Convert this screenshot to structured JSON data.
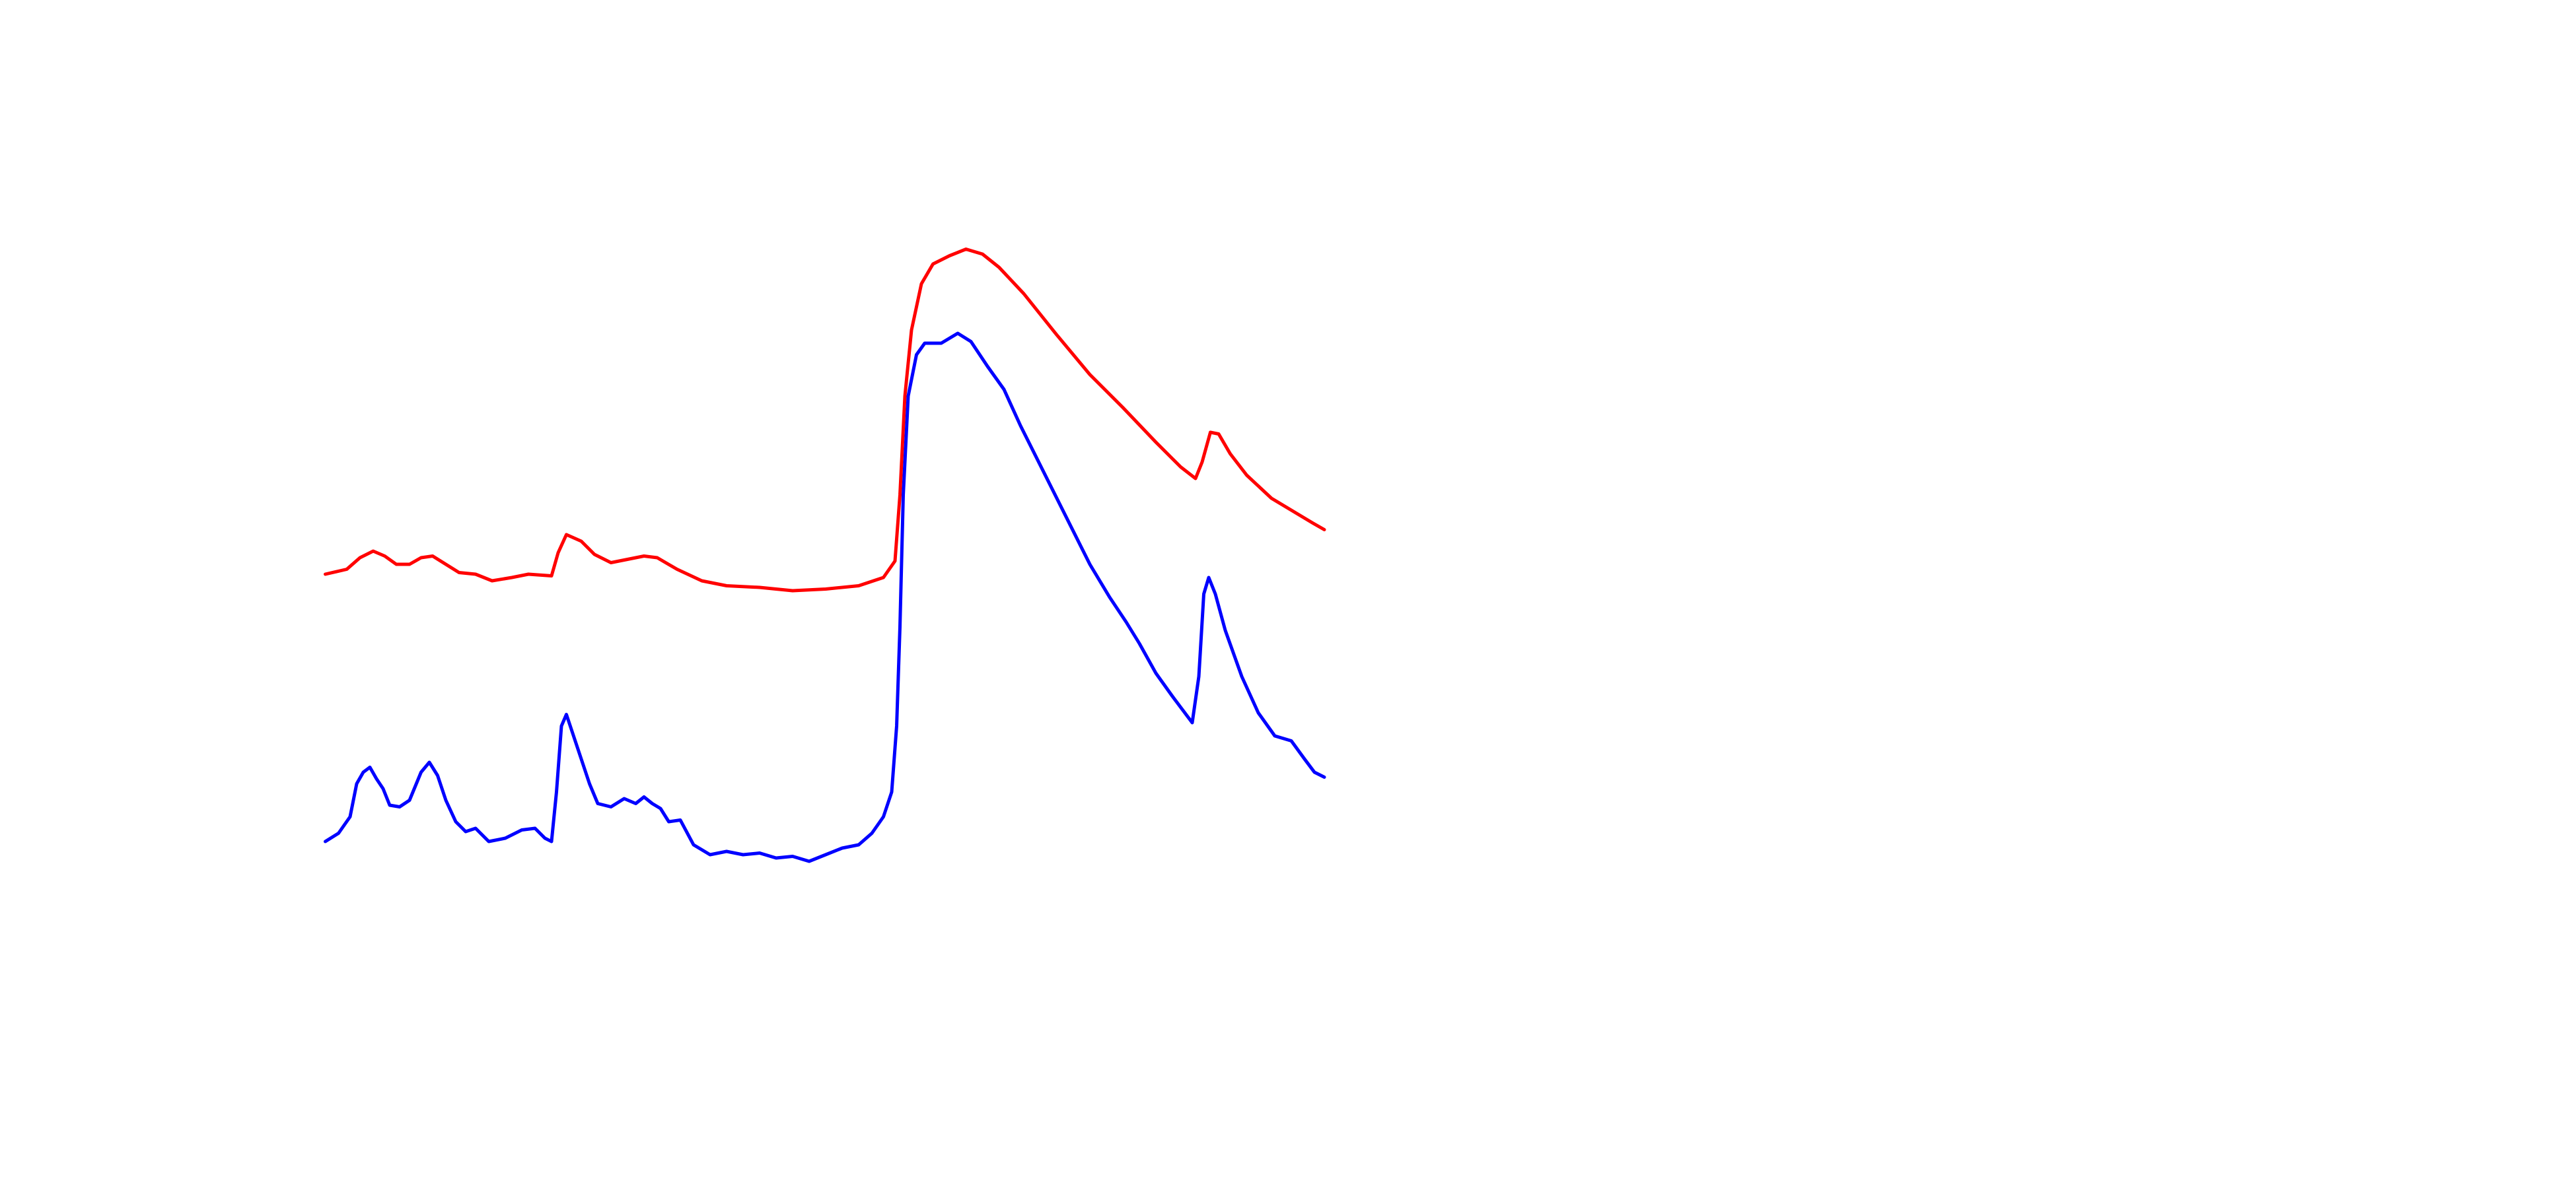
{
  "chart_data": {
    "type": "line",
    "xlim": [
      0,
      605
    ],
    "ylim": [
      0,
      390
    ],
    "series": [
      {
        "color": "#ff0000",
        "x": [
          0,
          13,
          21,
          29,
          36,
          43,
          51,
          58,
          65,
          73,
          81,
          91,
          101,
          113,
          123,
          137,
          141,
          146,
          155,
          163,
          173,
          183,
          193,
          201,
          213,
          228,
          243,
          263,
          283,
          303,
          323,
          338,
          345,
          348,
          351,
          355,
          361,
          368,
          378,
          388,
          398,
          408,
          423,
          443,
          463,
          483,
          503,
          518,
          527,
          531,
          536,
          541,
          548,
          558,
          573,
          588,
          598,
          605
        ],
        "values": [
          182,
          185,
          192,
          196,
          193,
          188,
          188,
          192,
          193,
          188,
          183,
          182,
          178,
          180,
          182,
          181,
          195,
          206,
          202,
          194,
          189,
          191,
          193,
          192,
          185,
          178,
          175,
          174,
          172,
          173,
          175,
          180,
          190,
          230,
          290,
          330,
          358,
          370,
          375,
          379,
          376,
          368,
          352,
          327,
          303,
          283,
          262,
          247,
          240,
          250,
          268,
          267,
          255,
          242,
          228,
          219,
          213,
          209
        ]
      },
      {
        "color": "#0000ff",
        "x": [
          0,
          8,
          15,
          19,
          23,
          27,
          31,
          35,
          39,
          45,
          51,
          58,
          63,
          68,
          73,
          79,
          85,
          91,
          99,
          109,
          119,
          127,
          133,
          137,
          140,
          143,
          146,
          150,
          155,
          160,
          165,
          173,
          181,
          188,
          193,
          198,
          203,
          208,
          215,
          223,
          233,
          243,
          253,
          263,
          273,
          283,
          293,
          303,
          313,
          323,
          331,
          338,
          343,
          346,
          348,
          350,
          353,
          358,
          363,
          373,
          383,
          391,
          401,
          411,
          421,
          433,
          448,
          463,
          475,
          485,
          493,
          503,
          513,
          525,
          529,
          532,
          535,
          539,
          545,
          555,
          565,
          575,
          585,
          593,
          599,
          605
        ],
        "values": [
          20,
          25,
          35,
          55,
          62,
          65,
          58,
          52,
          42,
          41,
          45,
          62,
          68,
          60,
          45,
          32,
          26,
          28,
          20,
          22,
          27,
          28,
          22,
          20,
          50,
          90,
          97,
          85,
          70,
          55,
          43,
          41,
          46,
          43,
          47,
          43,
          40,
          32,
          33,
          18,
          12,
          14,
          12,
          13,
          10,
          11,
          8,
          12,
          16,
          18,
          25,
          35,
          50,
          90,
          150,
          230,
          290,
          315,
          322,
          322,
          328,
          323,
          308,
          294,
          272,
          248,
          218,
          188,
          168,
          153,
          140,
          122,
          108,
          92,
          120,
          170,
          180,
          170,
          148,
          120,
          98,
          84,
          81,
          70,
          62,
          59
        ]
      }
    ]
  }
}
